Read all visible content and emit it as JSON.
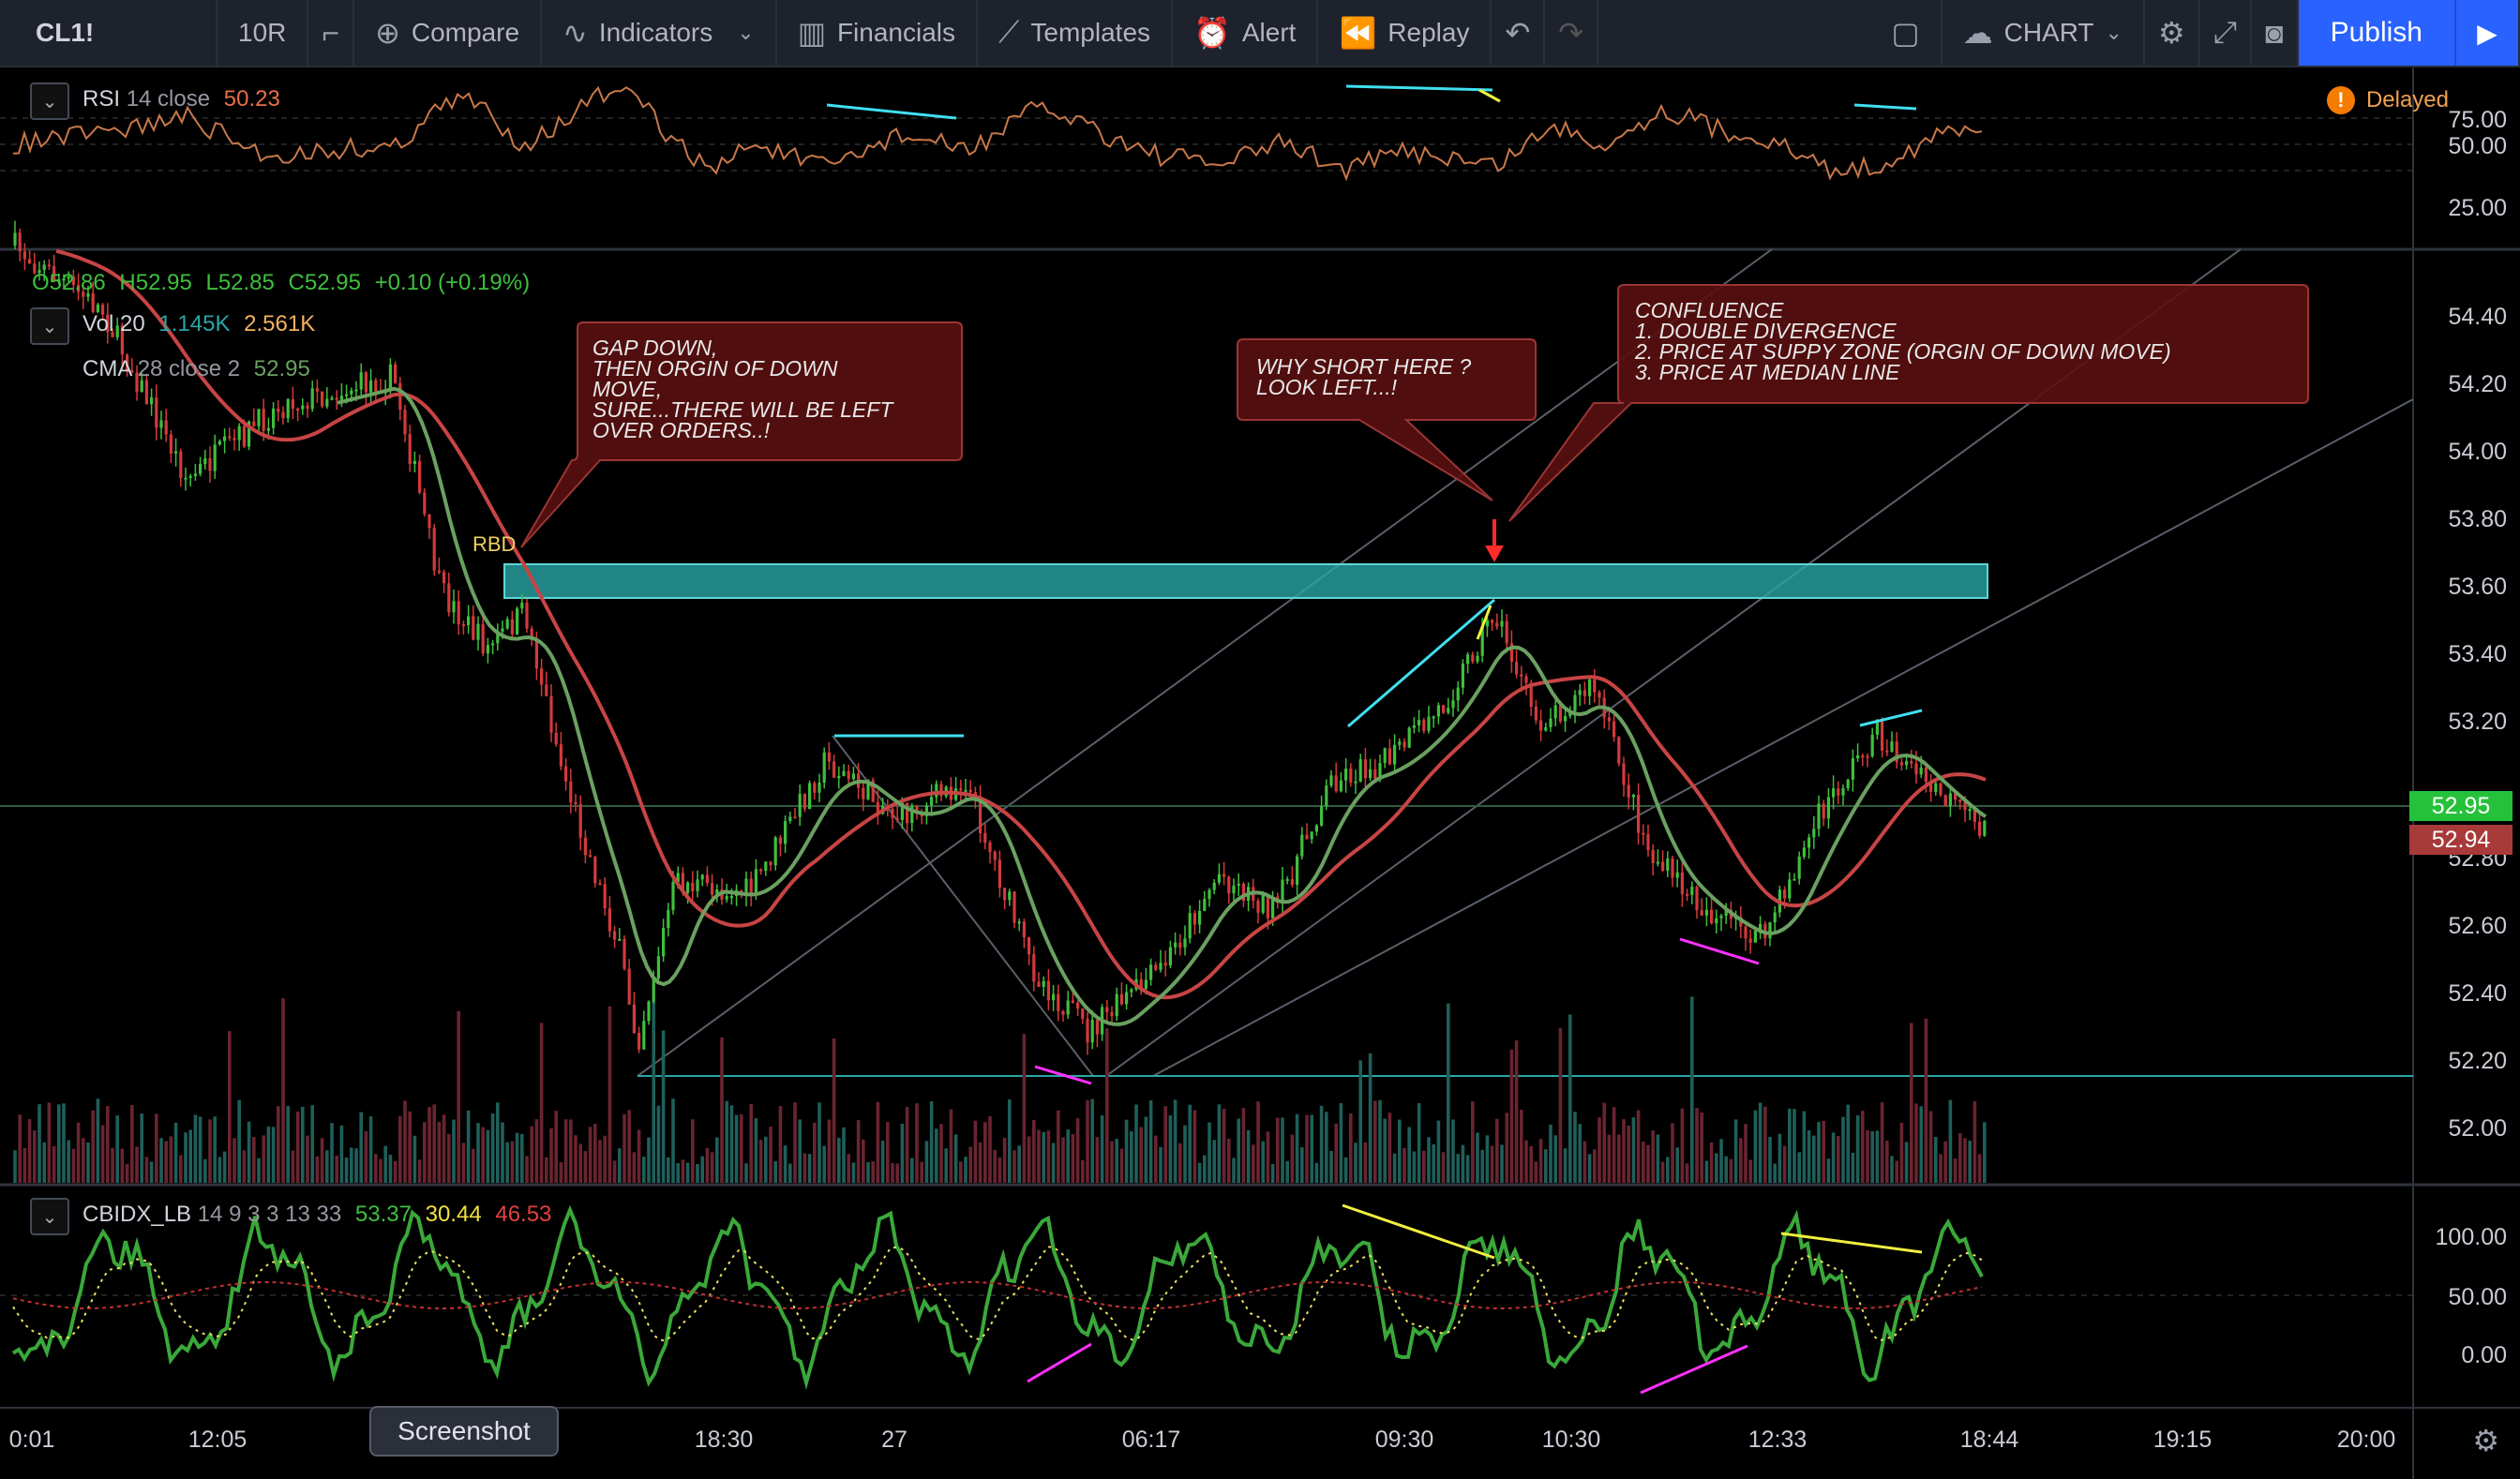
{
  "toolbar": {
    "symbol": "CL1!",
    "interval": "10R",
    "compare": "Compare",
    "indicators": "Indicators",
    "financials": "Financials",
    "templates": "Templates",
    "alert": "Alert",
    "replay": "Replay",
    "layout": "CHART",
    "publish": "Publish"
  },
  "status": {
    "delayed": "Delayed",
    "delayed_icon": "!"
  },
  "rsi": {
    "name": "RSI",
    "params": "14 close",
    "value": "50.23",
    "ticks": [
      "75.00",
      "50.00",
      "25.00"
    ]
  },
  "ohlc": {
    "open": "O52.86",
    "high": "H52.95",
    "low": "L52.85",
    "close": "C52.95",
    "change": "+0.10 (+0.19%)"
  },
  "volume": {
    "name": "Vol 20",
    "v1": "1.145K",
    "v2": "2.561K"
  },
  "cma": {
    "name": "CMA",
    "params": "28 close 2",
    "value": "52.95"
  },
  "price_axis": [
    "54.40",
    "54.20",
    "54.00",
    "53.80",
    "53.60",
    "53.40",
    "53.20",
    "52.80",
    "52.60",
    "52.40",
    "52.20",
    "52.00"
  ],
  "price_tags": {
    "last": "52.95",
    "cma": "52.94"
  },
  "rbd_label": "RBD",
  "annotations": {
    "gap": "Gap down,\nthen orgin of down\nmove,\nsure...there will be left\nover orders..!",
    "why": "Why short here ?\nlook left...!",
    "confluence": "Confluence\n1. Double divergence\n2. price at suppy zone (orgin of down move)\n3. price at median line"
  },
  "cbidx": {
    "name": "CBIDX_LB",
    "params": "14 9 3 3 13 33",
    "v1": "53.37",
    "v2": "30.44",
    "v3": "46.53",
    "ticks": [
      "100.00",
      "50.00",
      "0.00"
    ]
  },
  "time_axis": [
    "0:01",
    "12:05",
    "18:30",
    "27",
    "06:17",
    "09:30",
    "10:30",
    "12:33",
    "18:44",
    "19:15",
    "20:00"
  ],
  "tooltip": "Screenshot",
  "colors": {
    "bg": "#000000",
    "up": "#3fbf3f",
    "down": "#d33a3a",
    "zone": "#2aa6a6",
    "ma_red": "#c84444",
    "ma_green": "#6aa060",
    "rsi": "#c8784a",
    "callout": "#5a1010",
    "cyan": "#40e0f0",
    "magenta": "#ff30ff",
    "yellow": "#f0f040"
  }
}
